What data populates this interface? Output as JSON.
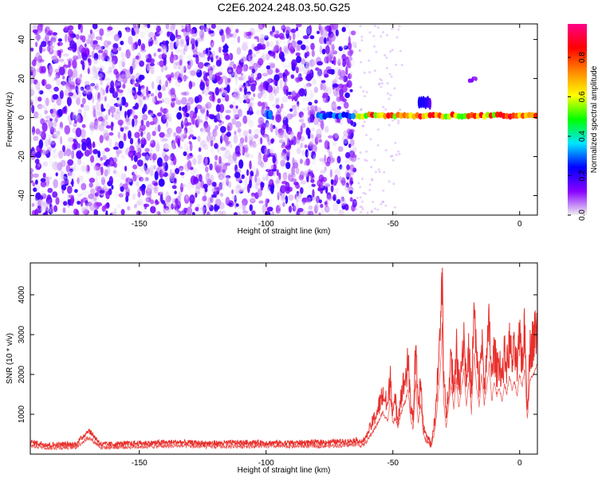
{
  "figure": {
    "title": "C2E6.2024.248.03.50.G25"
  },
  "colorbar": {
    "label": "Normalized spectral amplitude",
    "ticks": [
      0.0,
      0.2,
      0.4,
      0.6,
      0.8
    ],
    "tick_labels": [
      "0.0",
      "0.2",
      "0.4",
      "0.6",
      "0.8"
    ],
    "range": [
      0,
      0.97
    ],
    "colors": [
      "#f0f0f0",
      "#8800ff",
      "#0000ff",
      "#00e5ff",
      "#00ff00",
      "#ffff00",
      "#ff8800",
      "#ff0000",
      "#ff0088"
    ]
  },
  "chart_data": [
    {
      "type": "heatmap",
      "xlabel": "Height of straight line (km)",
      "ylabel": "Frequency (Hz)",
      "xlim": [
        -193,
        7
      ],
      "ylim": [
        -50,
        48
      ],
      "x_ticks": [
        -150,
        -100,
        -50,
        0
      ],
      "x_tick_labels": [
        "-150",
        "-100",
        "-50",
        "0"
      ],
      "y_ticks": [
        -40,
        -20,
        0,
        20,
        40
      ],
      "y_tick_labels": [
        "-40",
        "-20",
        "0",
        "20",
        "40"
      ],
      "colormap": "rainbow",
      "noise_region_x": [
        -193,
        -65
      ],
      "noise_amplitude_range": [
        0.0,
        0.2
      ],
      "features": [
        {
          "x": [
            -65,
            7
          ],
          "y": [
            0,
            2
          ],
          "amplitude": 0.9
        },
        {
          "x": [
            -80,
            -65
          ],
          "y": [
            0,
            2
          ],
          "amplitude": 0.35
        },
        {
          "x": [
            -100,
            -98
          ],
          "y": [
            0,
            3
          ],
          "amplitude": 0.35
        },
        {
          "x": [
            -40,
            -35
          ],
          "y": [
            5,
            10
          ],
          "amplitude": 0.25
        },
        {
          "x": [
            -20,
            -17
          ],
          "y": [
            19,
            20
          ],
          "amplitude": 0.15
        }
      ]
    },
    {
      "type": "line",
      "xlabel": "Height of straight line (km)",
      "ylabel": "SNR (10 * v/v)",
      "xlim": [
        -193,
        7
      ],
      "ylim": [
        0,
        4800
      ],
      "x_ticks": [
        -150,
        -100,
        -50,
        0
      ],
      "x_tick_labels": [
        "-150",
        "-100",
        "-50",
        "0"
      ],
      "y_ticks": [
        1000,
        2000,
        3000,
        4000
      ],
      "y_tick_labels": [
        "1000",
        "2000",
        "3000",
        "4000"
      ],
      "color": "#e8302c",
      "series": [
        {
          "x": [
            -193,
            -185,
            -175,
            -170,
            -165,
            -155,
            -145,
            -135,
            -125,
            -115,
            -105,
            -95,
            -85,
            -75,
            -68,
            -64,
            -62,
            -60,
            -58,
            -56,
            -54,
            -52,
            -51,
            -50,
            -49,
            -48,
            -47,
            -46,
            -45,
            -44,
            -43,
            -42,
            -41,
            -40,
            -39,
            -38,
            -37,
            -36,
            -35,
            -34,
            -33,
            -32,
            -31,
            -30.5,
            -30,
            -29,
            -28,
            -27,
            -26,
            -25,
            -24,
            -23,
            -22,
            -21,
            -20,
            -19,
            -18,
            -17,
            -16,
            -15,
            -14,
            -13,
            -12,
            -11,
            -10,
            -9,
            -8,
            -7,
            -6,
            -5,
            -4,
            -3,
            -2,
            -1,
            0,
            1,
            2,
            3,
            4,
            5,
            6,
            7
          ],
          "y": [
            300,
            230,
            250,
            600,
            240,
            260,
            280,
            300,
            270,
            280,
            290,
            280,
            290,
            300,
            320,
            350,
            300,
            500,
            800,
            1100,
            1500,
            1200,
            2000,
            1100,
            1300,
            900,
            1400,
            1700,
            1900,
            2300,
            1300,
            900,
            2600,
            1100,
            1800,
            700,
            500,
            400,
            250,
            600,
            1200,
            2200,
            3500,
            4800,
            2000,
            900,
            1800,
            2500,
            1600,
            2700,
            1700,
            2300,
            3000,
            1800,
            2600,
            1500,
            3600,
            2400,
            1700,
            2900,
            1800,
            2300,
            3300,
            1900,
            2600,
            2100,
            2400,
            1900,
            2500,
            2200,
            2800,
            2300,
            2600,
            2100,
            2900,
            2400,
            3100,
            1200,
            2600,
            2800,
            3000,
            3200
          ]
        }
      ]
    }
  ]
}
